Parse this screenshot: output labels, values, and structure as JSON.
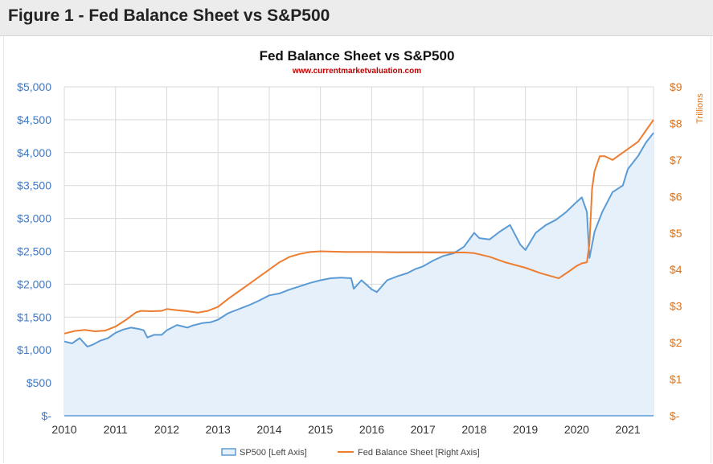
{
  "header": {
    "title": "Figure 1 - Fed Balance Sheet vs S&P500"
  },
  "chart_data": {
    "type": "area",
    "title": "Fed Balance Sheet vs S&P500",
    "subtitle": "www.currentmarketvaluation.com",
    "xlabel": "",
    "ylabel": "",
    "y2label": "Trillions",
    "x_ticks": [
      2010,
      2011,
      2012,
      2013,
      2014,
      2015,
      2016,
      2017,
      2018,
      2019,
      2020,
      2021
    ],
    "xlim": [
      2010,
      2021.5
    ],
    "ylim": [
      0,
      5000
    ],
    "y2lim": [
      0,
      9
    ],
    "y_tick_labels": [
      "$-",
      "$500",
      "$1,000",
      "$1,500",
      "$2,000",
      "$2,500",
      "$3,000",
      "$3,500",
      "$4,000",
      "$4,500",
      "$5,000"
    ],
    "y2_tick_labels": [
      "$-",
      "$1",
      "$2",
      "$3",
      "$4",
      "$5",
      "$6",
      "$7",
      "$8",
      "$9"
    ],
    "grid": true,
    "legend_position": "bottom",
    "colors": {
      "sp500": "#5b9bd5",
      "sp500_fill": "#e6f0fb",
      "fed": "#ed7d31",
      "left_axis": "#3f78c4",
      "right_axis": "#d9731f",
      "subtitle": "#c00000"
    },
    "series": [
      {
        "name": "SP500 [Left Axis]",
        "axis": "left",
        "x": [
          2010.0,
          2010.15,
          2010.3,
          2010.45,
          2010.55,
          2010.7,
          2010.85,
          2011.0,
          2011.15,
          2011.3,
          2011.45,
          2011.55,
          2011.62,
          2011.75,
          2011.9,
          2012.0,
          2012.2,
          2012.4,
          2012.5,
          2012.7,
          2012.85,
          2013.0,
          2013.2,
          2013.4,
          2013.6,
          2013.8,
          2014.0,
          2014.2,
          2014.4,
          2014.6,
          2014.8,
          2015.0,
          2015.2,
          2015.4,
          2015.6,
          2015.65,
          2015.8,
          2016.0,
          2016.1,
          2016.3,
          2016.5,
          2016.7,
          2016.85,
          2017.0,
          2017.2,
          2017.4,
          2017.6,
          2017.8,
          2018.0,
          2018.1,
          2018.3,
          2018.5,
          2018.7,
          2018.9,
          2019.0,
          2019.2,
          2019.4,
          2019.6,
          2019.8,
          2020.0,
          2020.1,
          2020.2,
          2020.25,
          2020.35,
          2020.5,
          2020.7,
          2020.9,
          2021.0,
          2021.2,
          2021.35,
          2021.5
        ],
        "values": [
          1130,
          1100,
          1180,
          1050,
          1080,
          1140,
          1180,
          1260,
          1310,
          1340,
          1320,
          1300,
          1190,
          1230,
          1230,
          1300,
          1380,
          1340,
          1370,
          1410,
          1420,
          1460,
          1560,
          1620,
          1680,
          1750,
          1830,
          1860,
          1920,
          1970,
          2020,
          2060,
          2090,
          2100,
          2090,
          1930,
          2060,
          1920,
          1880,
          2060,
          2120,
          2170,
          2230,
          2270,
          2360,
          2430,
          2470,
          2570,
          2780,
          2700,
          2680,
          2800,
          2900,
          2600,
          2520,
          2780,
          2900,
          2980,
          3100,
          3250,
          3320,
          3100,
          2400,
          2800,
          3100,
          3400,
          3500,
          3750,
          3950,
          4150,
          4300
        ]
      },
      {
        "name": "Fed Balance Sheet [Right Axis]",
        "axis": "right",
        "x": [
          2010.0,
          2010.2,
          2010.4,
          2010.6,
          2010.8,
          2011.0,
          2011.2,
          2011.4,
          2011.5,
          2011.7,
          2011.9,
          2012.0,
          2012.2,
          2012.4,
          2012.6,
          2012.8,
          2013.0,
          2013.2,
          2013.4,
          2013.6,
          2013.8,
          2014.0,
          2014.2,
          2014.4,
          2014.6,
          2014.8,
          2015.0,
          2015.5,
          2016.0,
          2016.5,
          2017.0,
          2017.5,
          2017.8,
          2018.0,
          2018.3,
          2018.6,
          2019.0,
          2019.3,
          2019.65,
          2019.85,
          2020.0,
          2020.1,
          2020.2,
          2020.25,
          2020.3,
          2020.35,
          2020.45,
          2020.55,
          2020.7,
          2020.9,
          2021.0,
          2021.2,
          2021.4,
          2021.5
        ],
        "values": [
          2.25,
          2.32,
          2.35,
          2.31,
          2.33,
          2.44,
          2.62,
          2.83,
          2.87,
          2.86,
          2.87,
          2.92,
          2.89,
          2.86,
          2.82,
          2.87,
          2.98,
          3.2,
          3.4,
          3.6,
          3.8,
          4.0,
          4.2,
          4.35,
          4.43,
          4.48,
          4.5,
          4.48,
          4.48,
          4.47,
          4.47,
          4.46,
          4.47,
          4.45,
          4.35,
          4.2,
          4.05,
          3.9,
          3.76,
          3.95,
          4.1,
          4.17,
          4.2,
          4.7,
          6.2,
          6.7,
          7.1,
          7.1,
          7.0,
          7.2,
          7.3,
          7.5,
          7.9,
          8.1
        ]
      }
    ]
  }
}
